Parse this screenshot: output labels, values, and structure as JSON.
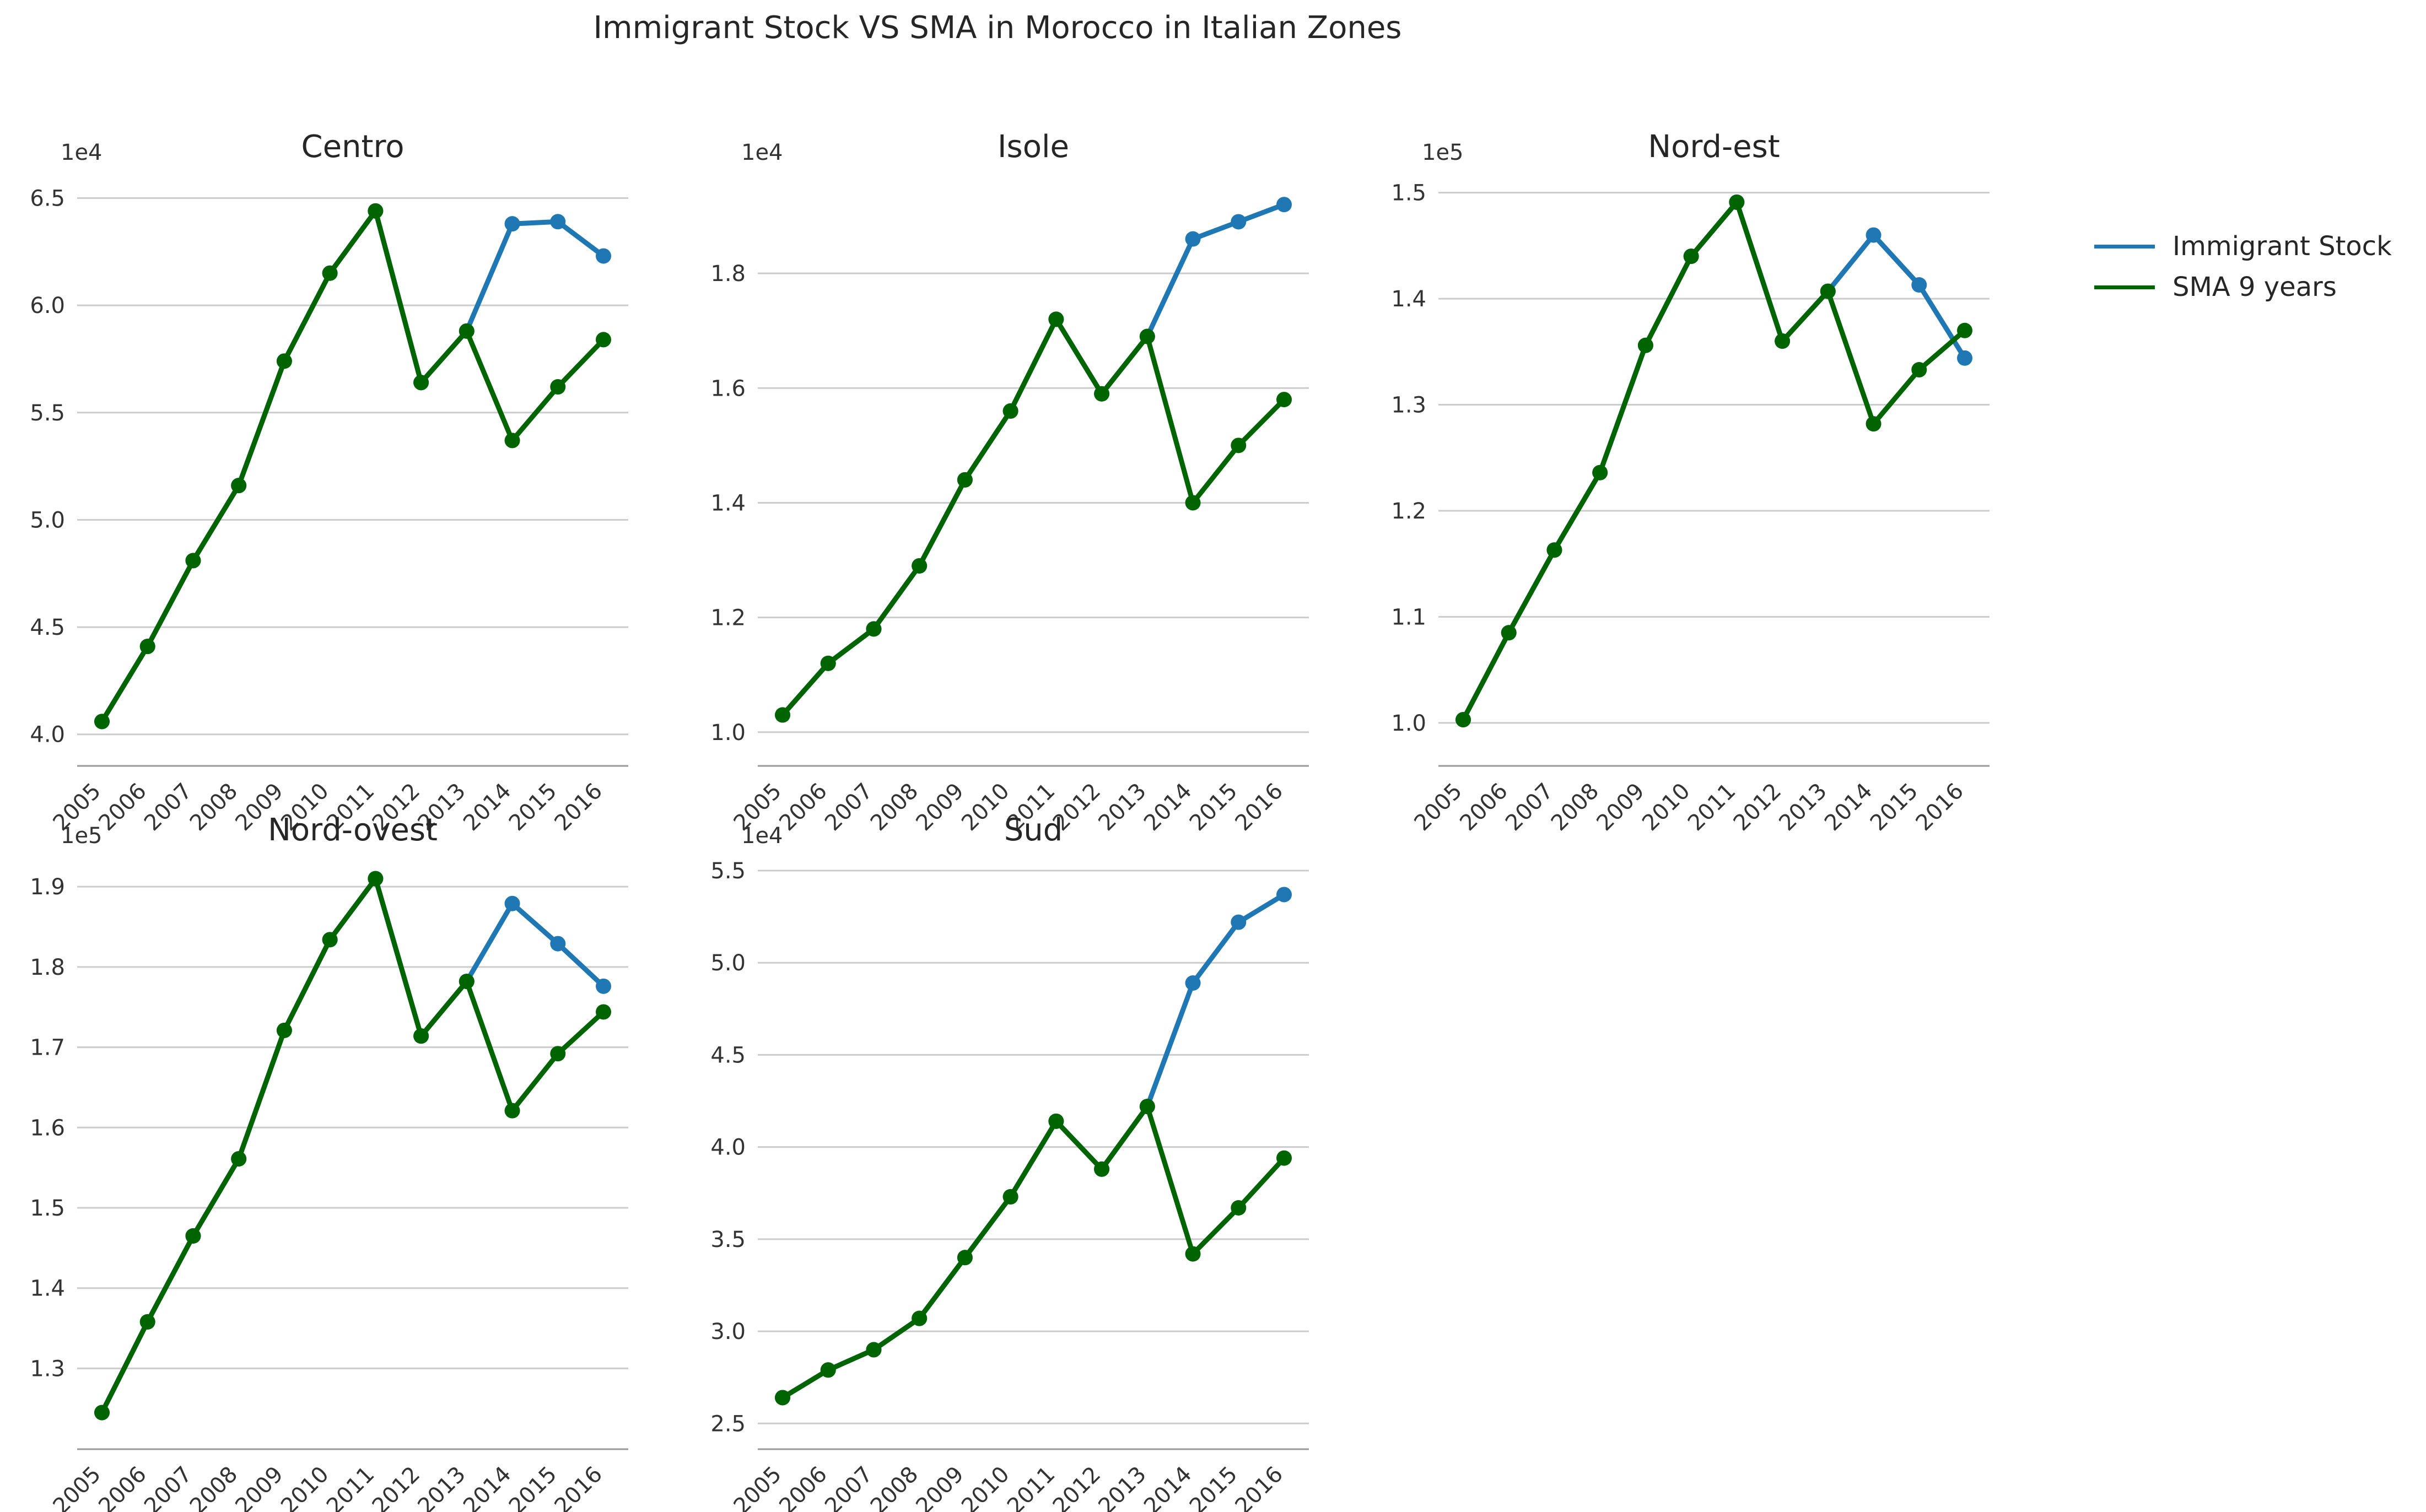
{
  "title": "Immigrant Stock VS SMA in Morocco in Italian Zones",
  "colors": {
    "stock": "#1f77b4",
    "sma": "#006400",
    "grid": "#cccccc",
    "axis": "#555555"
  },
  "legend": [
    {
      "label": "Immigrant Stock",
      "color": "#1f77b4"
    },
    {
      "label": "SMA 9 years",
      "color": "#006400"
    }
  ],
  "chart_data": [
    {
      "type": "line",
      "title": "Centro",
      "multiplier": "1e4",
      "x": [
        "2005",
        "2006",
        "2007",
        "2008",
        "2009",
        "2010",
        "2011",
        "2012",
        "2013",
        "2014",
        "2015",
        "2016"
      ],
      "ylim": [
        3.93,
        6.55
      ],
      "yticks": [
        "4.0",
        "4.5",
        "5.0",
        "5.5",
        "6.0",
        "6.5"
      ],
      "series": [
        {
          "name": "Immigrant Stock",
          "values": [
            4.06,
            4.41,
            4.81,
            5.16,
            5.74,
            6.15,
            6.44,
            5.64,
            5.88,
            6.38,
            6.39,
            6.23
          ]
        },
        {
          "name": "SMA 9 years",
          "values": [
            4.06,
            4.41,
            4.81,
            5.16,
            5.74,
            6.15,
            6.44,
            5.64,
            5.88,
            5.37,
            5.62,
            5.84
          ]
        }
      ]
    },
    {
      "type": "line",
      "title": "Isole",
      "multiplier": "1e4",
      "x": [
        "2005",
        "2006",
        "2007",
        "2008",
        "2009",
        "2010",
        "2011",
        "2012",
        "2013",
        "2014",
        "2015",
        "2016"
      ],
      "ylim": [
        0.97,
        1.95
      ],
      "yticks": [
        "1.0",
        "1.2",
        "1.4",
        "1.6",
        "1.8"
      ],
      "series": [
        {
          "name": "Immigrant Stock",
          "values": [
            1.03,
            1.12,
            1.18,
            1.29,
            1.44,
            1.56,
            1.72,
            1.59,
            1.69,
            1.86,
            1.89,
            1.92
          ]
        },
        {
          "name": "SMA 9 years",
          "values": [
            1.03,
            1.12,
            1.18,
            1.29,
            1.44,
            1.56,
            1.72,
            1.59,
            1.69,
            1.4,
            1.5,
            1.58
          ]
        }
      ]
    },
    {
      "type": "line",
      "title": "Nord-est",
      "multiplier": "1e5",
      "x": [
        "2005",
        "2006",
        "2007",
        "2008",
        "2009",
        "2010",
        "2011",
        "2012",
        "2013",
        "2014",
        "2015",
        "2016"
      ],
      "ylim": [
        0.975,
        1.505
      ],
      "yticks": [
        "1.0",
        "1.1",
        "1.2",
        "1.3",
        "1.4",
        "1.5"
      ],
      "series": [
        {
          "name": "Immigrant Stock",
          "values": [
            1.003,
            1.085,
            1.163,
            1.236,
            1.356,
            1.44,
            1.491,
            1.36,
            1.407,
            1.46,
            1.413,
            1.344
          ]
        },
        {
          "name": "SMA 9 years",
          "values": [
            1.003,
            1.085,
            1.163,
            1.236,
            1.356,
            1.44,
            1.491,
            1.36,
            1.407,
            1.282,
            1.333,
            1.37
          ]
        }
      ]
    },
    {
      "type": "line",
      "title": "Nord-ovest",
      "multiplier": "1e5",
      "x": [
        "2005",
        "2006",
        "2007",
        "2008",
        "2009",
        "2010",
        "2011",
        "2012",
        "2013",
        "2014",
        "2015",
        "2016"
      ],
      "ylim": [
        1.22,
        1.92
      ],
      "yticks": [
        "1.3",
        "1.4",
        "1.5",
        "1.6",
        "1.7",
        "1.8",
        "1.9"
      ],
      "series": [
        {
          "name": "Immigrant Stock",
          "values": [
            1.245,
            1.358,
            1.465,
            1.561,
            1.721,
            1.834,
            1.91,
            1.714,
            1.782,
            1.879,
            1.829,
            1.776
          ]
        },
        {
          "name": "SMA 9 years",
          "values": [
            1.245,
            1.358,
            1.465,
            1.561,
            1.721,
            1.834,
            1.91,
            1.714,
            1.782,
            1.621,
            1.692,
            1.744
          ]
        }
      ]
    },
    {
      "type": "line",
      "title": "Sud",
      "multiplier": "1e4",
      "x": [
        "2005",
        "2006",
        "2007",
        "2008",
        "2009",
        "2010",
        "2011",
        "2012",
        "2013",
        "2014",
        "2015",
        "2016"
      ],
      "ylim": [
        2.45,
        5.5
      ],
      "yticks": [
        "2.5",
        "3.0",
        "3.5",
        "4.0",
        "4.5",
        "5.0",
        "5.5"
      ],
      "series": [
        {
          "name": "Immigrant Stock",
          "values": [
            2.64,
            2.79,
            2.9,
            3.07,
            3.4,
            3.73,
            4.14,
            3.88,
            4.22,
            4.89,
            5.22,
            5.37
          ]
        },
        {
          "name": "SMA 9 years",
          "values": [
            2.64,
            2.79,
            2.9,
            3.07,
            3.4,
            3.73,
            4.14,
            3.88,
            4.22,
            3.42,
            3.67,
            3.94
          ]
        }
      ]
    }
  ]
}
